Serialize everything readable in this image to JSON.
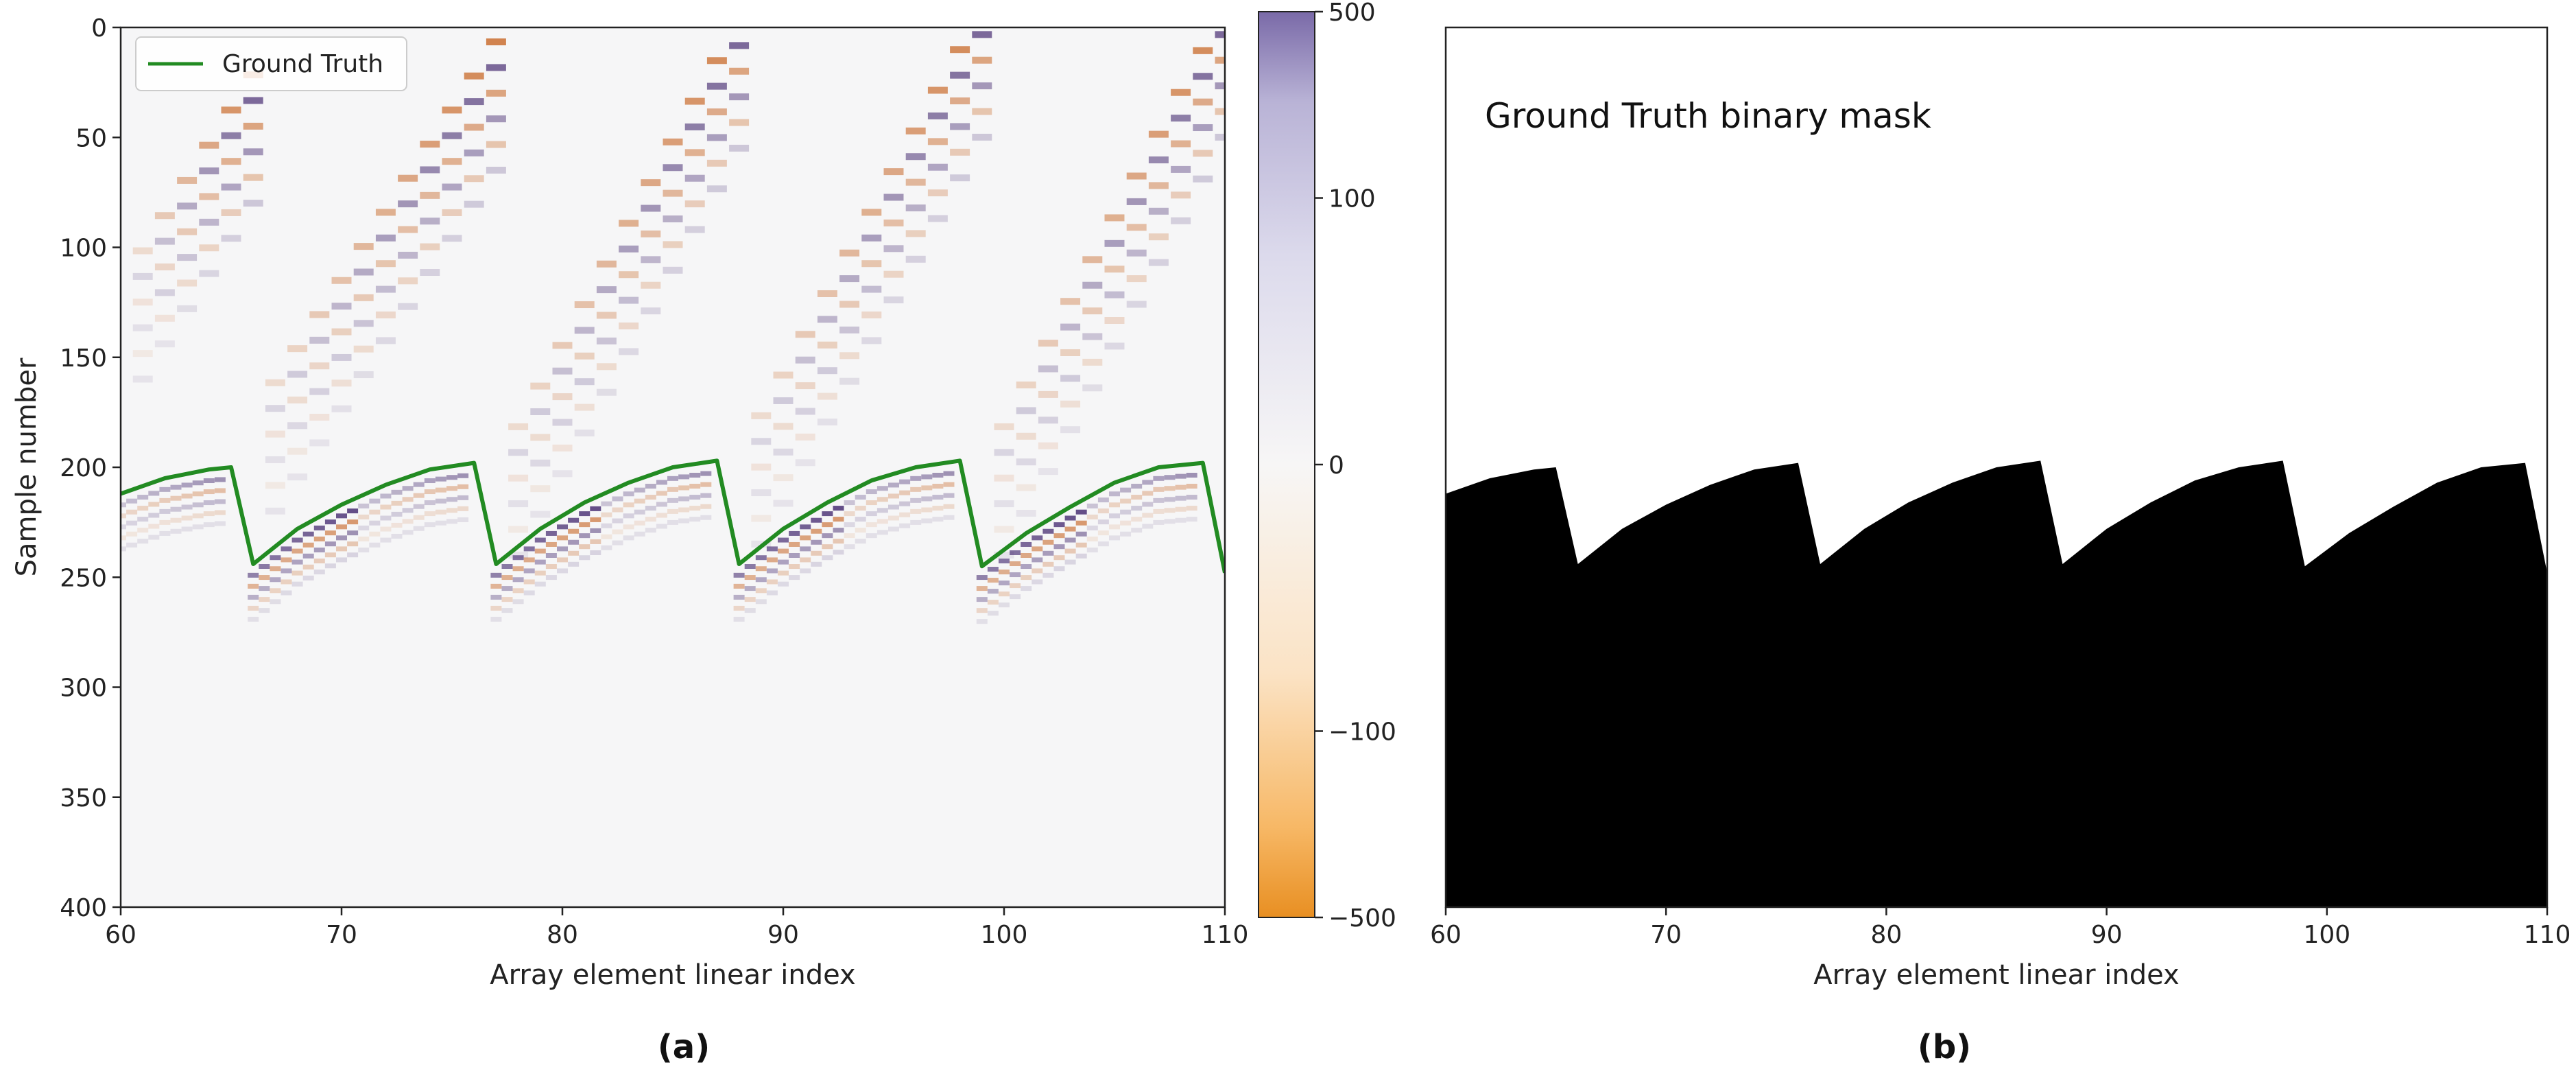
{
  "chart_data": [
    {
      "type": "heatmap",
      "panel_label": "(a)",
      "xlabel": "Array element linear index",
      "ylabel": "Sample number",
      "xlim": [
        60,
        110
      ],
      "ylim": [
        400,
        0
      ],
      "xticks": [
        60,
        70,
        80,
        90,
        100,
        110
      ],
      "yticks": [
        0,
        50,
        100,
        150,
        200,
        250,
        300,
        350,
        400
      ],
      "colormap": "PuOr (orange negative, purple positive)",
      "colorbar": {
        "range": [
          -500,
          500
        ],
        "ticks": [
          500,
          100,
          0,
          -100,
          -500
        ],
        "tick_labels": [
          "500",
          "100",
          "0",
          "−100",
          "−500"
        ],
        "scale": "symlog"
      },
      "colors": {
        "positive": "#2d0f5e",
        "negative": "#c2560e",
        "ground_truth": "#228b22"
      },
      "legend": {
        "position": "upper-left",
        "entries": [
          "Ground Truth"
        ]
      },
      "series": [
        {
          "name": "Ground Truth",
          "color": "#228b22",
          "x": [
            60,
            62,
            64,
            65,
            66,
            68,
            70,
            72,
            74,
            76,
            77,
            79,
            81,
            83,
            85,
            87,
            88,
            90,
            92,
            94,
            96,
            98,
            99,
            101,
            103,
            105,
            107,
            109,
            110
          ],
          "y": [
            212,
            205,
            201,
            200,
            244,
            228,
            217,
            208,
            201,
            198,
            244,
            228,
            216,
            207,
            200,
            197,
            244,
            228,
            216,
            206,
            200,
            197,
            245,
            230,
            218,
            207,
            200,
            198,
            248
          ]
        }
      ],
      "reflection_bands": [
        {
          "x_range": [
            61,
            66
          ],
          "sample_range": [
            30,
            110
          ]
        },
        {
          "x_range": [
            67,
            77
          ],
          "sample_range": [
            15,
            170
          ]
        },
        {
          "x_range": [
            78,
            88
          ],
          "sample_range": [
            5,
            190
          ]
        },
        {
          "x_range": [
            89,
            99
          ],
          "sample_range": [
            0,
            185
          ]
        },
        {
          "x_range": [
            100,
            110
          ],
          "sample_range": [
            0,
            190
          ]
        }
      ]
    },
    {
      "type": "heatmap",
      "panel_label": "(b)",
      "annotation": "Ground Truth binary mask",
      "xlabel": "Array element linear index",
      "xlim": [
        60,
        110
      ],
      "ylim": [
        400,
        0
      ],
      "xticks": [
        60,
        70,
        80,
        90,
        100,
        110
      ],
      "colors": {
        "mask": "#000000",
        "background": "#ffffff"
      },
      "boundary": {
        "x": [
          60,
          62,
          64,
          65,
          66,
          68,
          70,
          72,
          74,
          76,
          77,
          79,
          81,
          83,
          85,
          87,
          88,
          90,
          92,
          94,
          96,
          98,
          99,
          101,
          103,
          105,
          107,
          109,
          110
        ],
        "y": [
          212,
          205,
          201,
          200,
          244,
          228,
          217,
          208,
          201,
          198,
          244,
          228,
          216,
          207,
          200,
          197,
          244,
          228,
          216,
          206,
          200,
          197,
          245,
          230,
          218,
          207,
          200,
          198,
          248
        ]
      }
    }
  ]
}
